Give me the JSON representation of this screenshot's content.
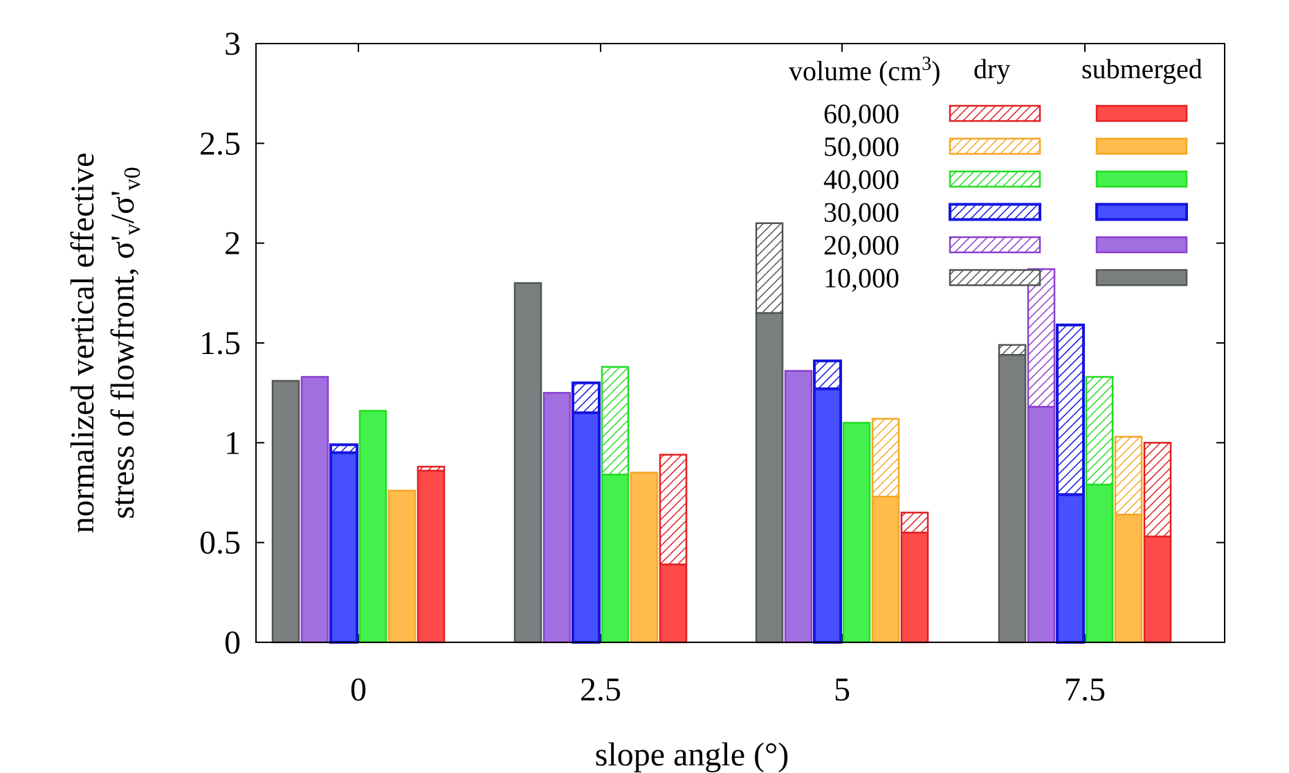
{
  "chart_data": {
    "type": "bar",
    "xlabel": "slope angle (°)",
    "ylabel_line1": "normalized vertical effective",
    "ylabel_line2": "stress of flowfront, σ'",
    "ylabel_sub_v": "v",
    "ylabel_slash": "/σ'",
    "ylabel_sub_v0": "v0",
    "ylim": [
      0,
      3
    ],
    "yticks": [
      "0",
      "0.5",
      "1",
      "1.5",
      "2",
      "2.5",
      "3"
    ],
    "categories": [
      "0",
      "2.5",
      "5",
      "7.5"
    ],
    "legend": {
      "header": "volume (cm",
      "header_sup": "3",
      "header_close": ")",
      "dry_label": "dry",
      "submerged_label": "submerged",
      "placement": "top-right"
    },
    "series": [
      {
        "name": "10,000",
        "color": "#7b7f80",
        "edge": "#505555",
        "submerged": [
          1.31,
          1.8,
          1.65,
          1.44
        ],
        "dry": [
          1.31,
          1.8,
          2.1,
          1.49
        ]
      },
      {
        "name": "20,000",
        "color": "#a16fe0",
        "edge": "#8a3fd0",
        "submerged": [
          1.33,
          1.25,
          1.36,
          1.18
        ],
        "dry": [
          1.33,
          1.25,
          1.36,
          1.87
        ]
      },
      {
        "name": "30,000",
        "color": "#4650ff",
        "edge": "#1515e0",
        "submerged": [
          0.95,
          1.15,
          1.27,
          0.74
        ],
        "dry": [
          0.99,
          1.3,
          1.41,
          1.59
        ]
      },
      {
        "name": "40,000",
        "color": "#44f04b",
        "edge": "#22dd22",
        "submerged": [
          1.16,
          0.84,
          1.1,
          0.79
        ],
        "dry": [
          1.16,
          1.38,
          1.1,
          1.33
        ]
      },
      {
        "name": "50,000",
        "color": "#ffbc4d",
        "edge": "#f5a623",
        "submerged": [
          0.76,
          0.85,
          0.73,
          0.64
        ],
        "dry": [
          0.76,
          0.85,
          1.12,
          1.03
        ]
      },
      {
        "name": "60,000",
        "color": "#ff4a4a",
        "edge": "#e02020",
        "submerged": [
          0.86,
          0.39,
          0.55,
          0.53
        ],
        "dry": [
          0.88,
          0.94,
          0.65,
          1.0
        ]
      }
    ]
  }
}
